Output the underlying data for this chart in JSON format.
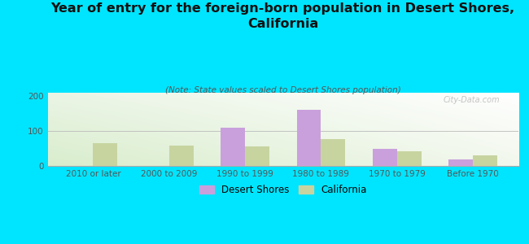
{
  "title": "Year of entry for the foreign-born population in Desert Shores,\nCalifornia",
  "subtitle": "(Note: State values scaled to Desert Shores population)",
  "categories": [
    "2010 or later",
    "2000 to 2009",
    "1990 to 1999",
    "1980 to 1989",
    "1970 to 1979",
    "Before 1970"
  ],
  "desert_shores": [
    0,
    0,
    110,
    160,
    50,
    18
  ],
  "california": [
    65,
    58,
    55,
    78,
    42,
    30
  ],
  "desert_shores_color": "#c9a0dc",
  "california_color": "#c8d4a0",
  "background_color": "#00e5ff",
  "plot_bg_topleft": "#d8ead0",
  "plot_bg_topright": "#f5f8f0",
  "plot_bg_bottomleft": "#e8f2e0",
  "plot_bg_bottomright": "#ffffff",
  "ylim": [
    0,
    210
  ],
  "yticks": [
    0,
    100,
    200
  ],
  "bar_width": 0.32,
  "title_fontsize": 11.5,
  "subtitle_fontsize": 7.5,
  "tick_fontsize": 7.5,
  "legend_fontsize": 8.5,
  "watermark": "City-Data.com"
}
